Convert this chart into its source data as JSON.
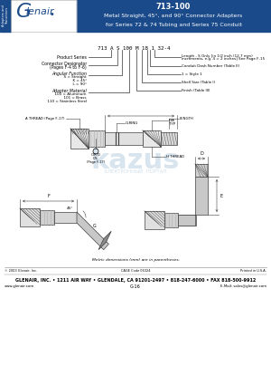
{
  "title_number": "713-100",
  "title_main": "Metal Straight, 45°, and 90° Connector Adapters",
  "title_sub": "for Series 72 & 74 Tubing and Series 75 Conduit",
  "header_bg": "#1a4a8a",
  "header_text_color": "#ffffff",
  "part_number_example": "713 A S 100 M 18 1 32-4",
  "bottom_note": "Metric dimensions (mm) are in parentheses.",
  "footer_copyright": "© 2003 Glenair, Inc.",
  "footer_cage": "CAGE Code 06324",
  "footer_printed": "Printed in U.S.A.",
  "footer_line2": "GLENAIR, INC. • 1211 AIR WAY • GLENDALE, CA 91201-2497 • 818-247-6000 • FAX 818-500-9912",
  "footer_web": "www.glenair.com",
  "footer_page": "G-16",
  "footer_email": "E-Mail: sales@glenair.com",
  "sidebar_bg": "#1a4a8a",
  "sidebar_text": "Adapters and\nTransitions",
  "body_bg": "#ffffff",
  "lc": "#404040",
  "watermark_text": "kazus",
  "watermark_sub": "ЭЛЕКТРОННЫЙ  ПОРТАЛ",
  "watermark_color": "#b8cfe0",
  "logo_g_color": "#1a4a8a",
  "logo_rest_color": "#1a4a8a"
}
